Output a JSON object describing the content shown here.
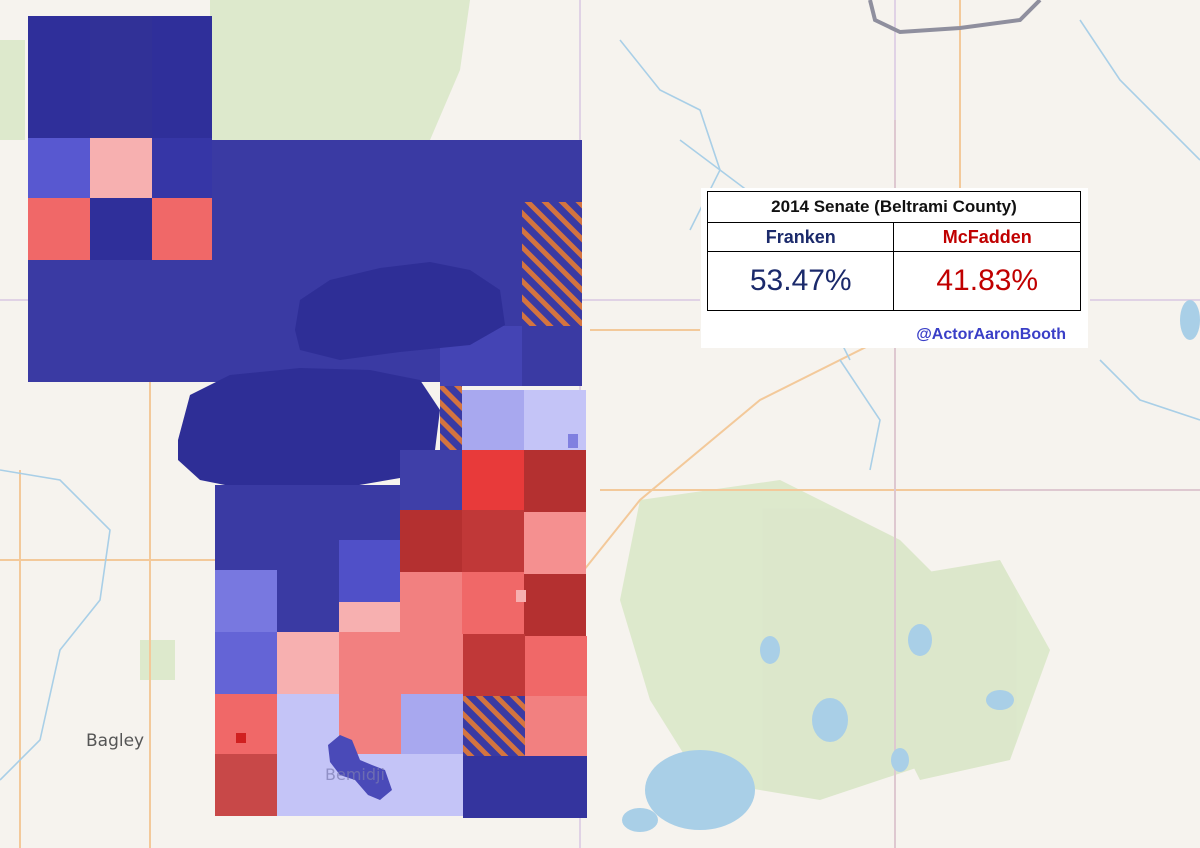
{
  "map": {
    "town_labels": [
      {
        "name": "Bagley"
      },
      {
        "name": "Bemidji"
      }
    ],
    "colors": {
      "background": "#f6f3ee",
      "water": "#a9cfe7",
      "forest": "#d8e6c5",
      "road": "#f3c99a",
      "dem_strong": "#2f2f9e",
      "dem_mid": "#5050c8",
      "dem_light": "#a8a8ef",
      "rep_strong": "#b43030",
      "rep_mid": "#f06868",
      "rep_light": "#f7b0b0",
      "tie": "#d4743f"
    }
  },
  "results": {
    "title": "2014 Senate (Beltrami County)",
    "candidates": [
      {
        "name": "Franken",
        "pct": "53.47%",
        "color": "#1b2a6b"
      },
      {
        "name": "McFadden",
        "pct": "41.83%",
        "color": "#c00000"
      }
    ],
    "credit": "@ActorAaronBooth"
  }
}
